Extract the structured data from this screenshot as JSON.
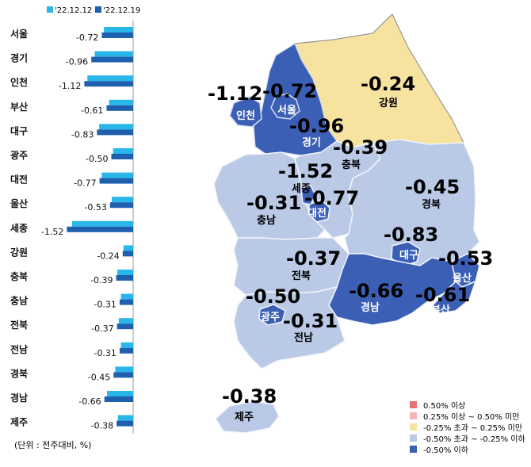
{
  "legend": {
    "series": [
      {
        "label": "'22.12.12",
        "color": "#29B6E8"
      },
      {
        "label": "'22.12.19",
        "color": "#1E5FAE"
      }
    ]
  },
  "unit_note": "(단위 : 전주대비, %)",
  "chart_data": {
    "type": "bar",
    "orientation": "horizontal",
    "categories": [
      "서울",
      "경기",
      "인천",
      "부산",
      "대구",
      "광주",
      "대전",
      "울산",
      "세종",
      "강원",
      "충북",
      "충남",
      "전북",
      "전남",
      "경북",
      "경남",
      "제주"
    ],
    "series": [
      {
        "name": "'22.12.12",
        "values": [
          -0.67,
          -0.88,
          -1.05,
          -0.55,
          -0.78,
          -0.46,
          -0.72,
          -0.49,
          -1.4,
          -0.22,
          -0.36,
          -0.28,
          -0.33,
          -0.28,
          -0.41,
          -0.6,
          -0.35
        ]
      },
      {
        "name": "'22.12.19",
        "values": [
          -0.72,
          -0.96,
          -1.12,
          -0.61,
          -0.83,
          -0.5,
          -0.77,
          -0.53,
          -1.52,
          -0.24,
          -0.39,
          -0.31,
          -0.37,
          -0.31,
          -0.45,
          -0.66,
          -0.38
        ]
      }
    ],
    "value_labels": [
      "-0.72",
      "-0.96",
      "-1.12",
      "-0.61",
      "-0.83",
      "-0.50",
      "-0.77",
      "-0.53",
      "-1.52",
      "-0.24",
      "-0.39",
      "-0.31",
      "-0.37",
      "-0.31",
      "-0.45",
      "-0.66",
      "-0.38"
    ],
    "xlim": [
      -1.6,
      0
    ]
  },
  "map": {
    "regions": [
      {
        "name": "인천",
        "value": "-1.12",
        "color": "#3A5FB5"
      },
      {
        "name": "서울",
        "value": "-0.72",
        "color": "#3A5FB5"
      },
      {
        "name": "경기",
        "value": "-0.96",
        "color": "#3A5FB5"
      },
      {
        "name": "강원",
        "value": "-0.24",
        "color": "#F7E3A0"
      },
      {
        "name": "충북",
        "value": "-0.39",
        "color": "#B9C9E6"
      },
      {
        "name": "세종",
        "value": "-1.52",
        "color": "#3A5FB5"
      },
      {
        "name": "대전",
        "value": "-0.77",
        "color": "#3A5FB5"
      },
      {
        "name": "충남",
        "value": "-0.31",
        "color": "#B9C9E6"
      },
      {
        "name": "경북",
        "value": "-0.45",
        "color": "#B9C9E6"
      },
      {
        "name": "대구",
        "value": "-0.83",
        "color": "#3A5FB5"
      },
      {
        "name": "울산",
        "value": "-0.53",
        "color": "#3A5FB5"
      },
      {
        "name": "전북",
        "value": "-0.37",
        "color": "#B9C9E6"
      },
      {
        "name": "경남",
        "value": "-0.66",
        "color": "#3A5FB5"
      },
      {
        "name": "부산",
        "value": "-0.61",
        "color": "#3A5FB5"
      },
      {
        "name": "광주",
        "value": "-0.50",
        "color": "#3A5FB5"
      },
      {
        "name": "전남",
        "value": "-0.31",
        "color": "#B9C9E6"
      },
      {
        "name": "제주",
        "value": "-0.38",
        "color": "#B9C9E6"
      }
    ],
    "legend": [
      {
        "label": "0.50% 이상",
        "color": "#E57373"
      },
      {
        "label": "0.25% 이상 ~ 0.50% 미만",
        "color": "#F4B6B6"
      },
      {
        "label": "-0.25% 초과 ~ 0.25% 미만",
        "color": "#F7E3A0"
      },
      {
        "label": "-0.50% 초과 ~ -0.25% 이하",
        "color": "#B9C9E6"
      },
      {
        "label": "-0.50% 이하",
        "color": "#3A5FB5"
      }
    ]
  }
}
